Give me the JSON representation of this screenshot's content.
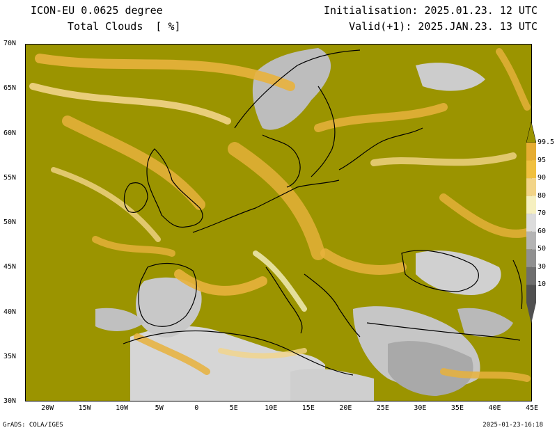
{
  "header": {
    "model": "ICON-EU 0.0625 degree",
    "variable": "Total Clouds  [ %]",
    "init": "Initialisation: 2025.01.23. 12 UTC",
    "valid": "Valid(+1): 2025.JAN.23. 13 UTC"
  },
  "footer": {
    "credit": "GrADS: COLA/IGES",
    "timestamp": "2025-01-23-16:18"
  },
  "axes": {
    "lat_labels": [
      "70N",
      "65N",
      "60N",
      "55N",
      "50N",
      "45N",
      "40N",
      "35N",
      "30N"
    ],
    "lat_values": [
      70,
      65,
      60,
      55,
      50,
      45,
      40,
      35,
      30
    ],
    "lon_labels": [
      "20W",
      "15W",
      "10W",
      "5W",
      "0",
      "5E",
      "10E",
      "15E",
      "20E",
      "25E",
      "30E",
      "35E",
      "40E",
      "45E"
    ],
    "lon_values": [
      -20,
      -15,
      -10,
      -5,
      0,
      5,
      10,
      15,
      20,
      25,
      30,
      35,
      40,
      45
    ],
    "lat_range": [
      30,
      70
    ],
    "lon_range": [
      -23,
      45
    ]
  },
  "colorbar": {
    "labels": [
      "99.5",
      "95",
      "90",
      "80",
      "70",
      "60",
      "50",
      "30",
      "10"
    ],
    "levels": [
      99.5,
      95,
      90,
      80,
      70,
      60,
      50,
      30,
      10
    ],
    "colors": [
      "#9b9400",
      "#e6ad33",
      "#f0c040",
      "#f2d488",
      "#f6f0c0",
      "#dcdcdc",
      "#b4b4b4",
      "#909090",
      "#6e6e6e",
      "#505050"
    ]
  },
  "colors": {
    "overcast": "#9b9400",
    "high_cloud": "#e8b13c",
    "clear": "#dcdcdc",
    "border": "#000000"
  }
}
